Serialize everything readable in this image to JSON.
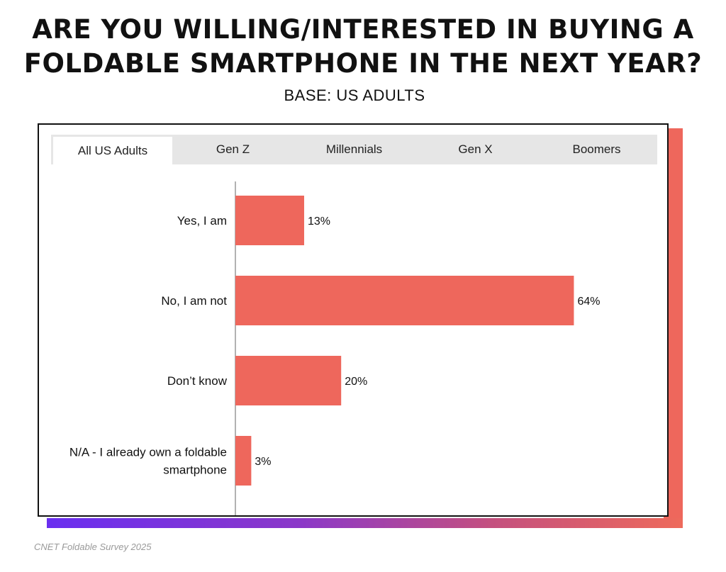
{
  "title_lines": [
    "ARE YOU WILLING/INTERESTED IN BUYING A",
    "FOLDABLE SMARTPHONE IN THE NEXT YEAR?"
  ],
  "subtitle": "BASE: US ADULTS",
  "tabs": [
    {
      "label": "All US Adults",
      "active": true
    },
    {
      "label": "Gen Z",
      "active": false
    },
    {
      "label": "Millennials",
      "active": false
    },
    {
      "label": "Gen X",
      "active": false
    },
    {
      "label": "Boomers",
      "active": false
    }
  ],
  "colors": {
    "bar": "#ee675c",
    "accent_shadow": "#ee675c",
    "gradient_start": "#6a2ff0"
  },
  "chart_data": {
    "type": "bar",
    "orientation": "horizontal",
    "categories": [
      [
        "Yes, I am"
      ],
      [
        "No, I am not"
      ],
      [
        "Don’t know"
      ],
      [
        "N/A - I already own a foldable",
        "smartphone"
      ]
    ],
    "values": [
      13,
      64,
      20,
      3
    ],
    "value_labels": [
      "13%",
      "64%",
      "20%",
      "3%"
    ],
    "xlim": [
      0,
      100
    ]
  },
  "footer": "CNET  Foldable Survey 2025"
}
